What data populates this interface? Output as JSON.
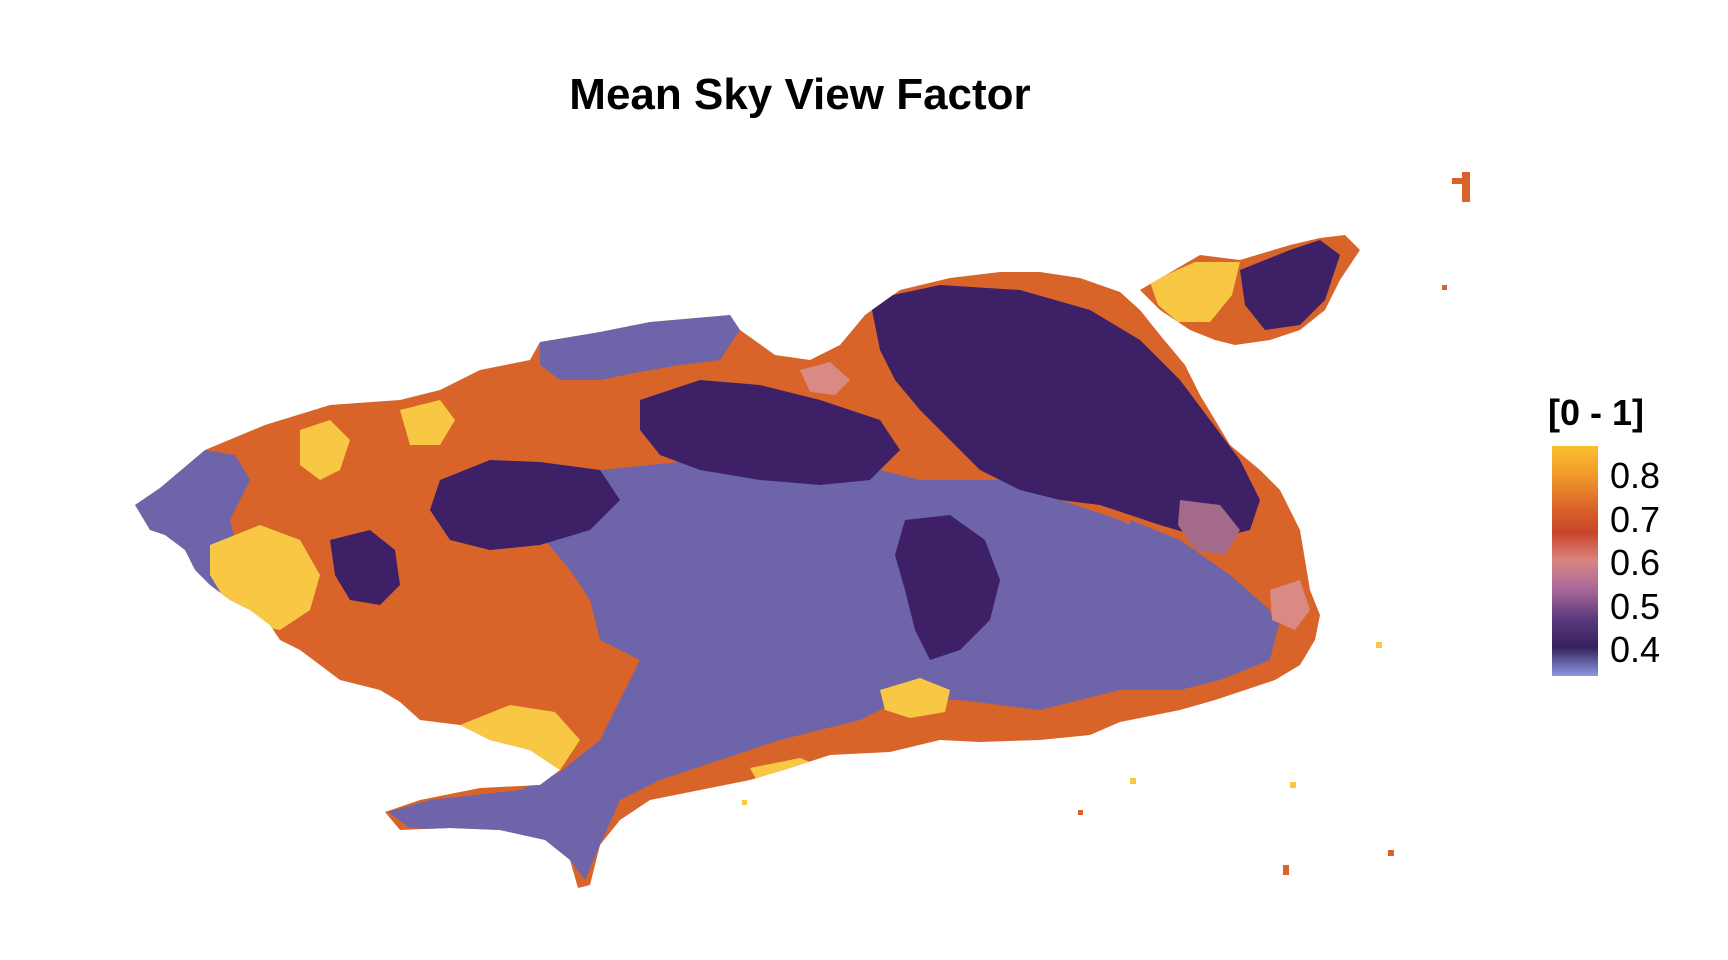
{
  "title": "Mean Sky View Factor",
  "legend": {
    "title": "[0 - 1]",
    "labels": [
      "0.8",
      "0.7",
      "0.6",
      "0.5",
      "0.4"
    ],
    "values": [
      0.8,
      0.7,
      0.6,
      0.5,
      0.4
    ],
    "gradient_colors": [
      "#fbbf2e",
      "#f19a2c",
      "#dd6b2a",
      "#c8442a",
      "#d98582",
      "#a6689a",
      "#5c3a7e",
      "#35205d",
      "#8e99e1"
    ]
  },
  "palette": {
    "yellow": "#f8c845",
    "orange": "#d8642a",
    "dark_purple": "#3d2066",
    "blue_purple": "#6e64aa",
    "pink": "#d98a84",
    "mauve": "#a46a8a",
    "light_blue": "#8c9be0"
  }
}
